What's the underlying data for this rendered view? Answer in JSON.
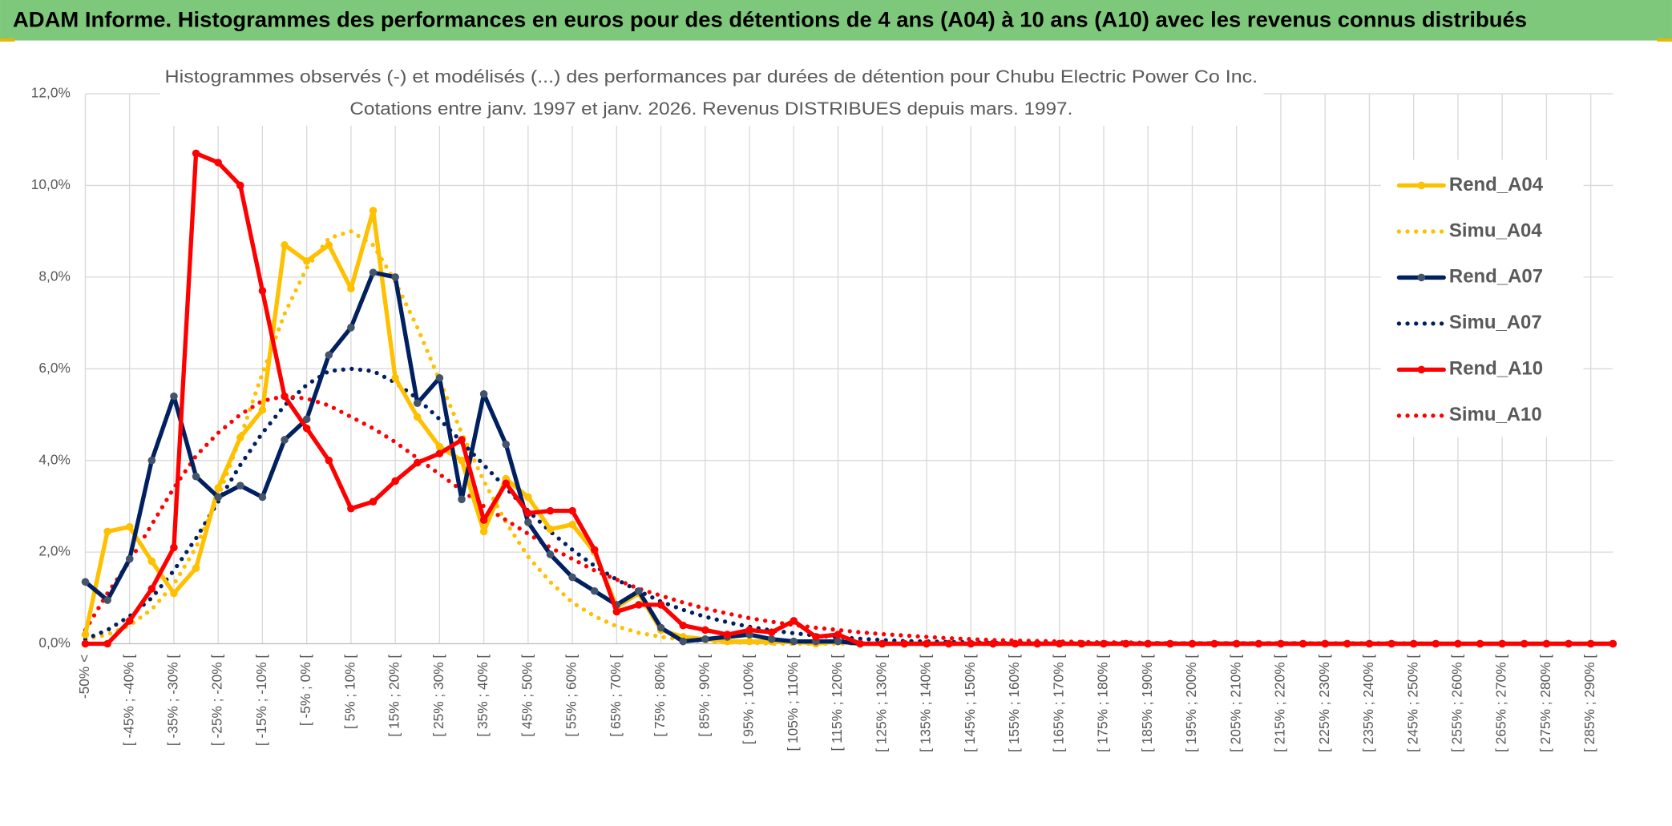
{
  "chart_data": {
    "type": "line",
    "header": "ADAM Informe. Histogrammes des performances en euros pour des détentions de 4 ans (A04) à 10 ans (A10) avec les revenus connus distribués",
    "title": "Histogrammes observés (-) et modélisés (...) des performances par durées de détention pour Chubu Electric Power Co Inc.",
    "subtitle": "Cotations entre janv. 1997 et janv. 2026. Revenus DISTRIBUES depuis mars. 1997.",
    "categories": [
      "-50% <",
      null,
      "[ -45% ; -40% [",
      null,
      "[ -35% ; -30% [",
      null,
      "[ -25% ; -20% [",
      null,
      "[ -15% ; -10% [",
      null,
      "[ -5% ; 0% [",
      null,
      "[ 5% ; 10% [",
      null,
      "[ 15% ; 20% [",
      null,
      "[ 25% ; 30% [",
      null,
      "[ 35% ; 40% [",
      null,
      "[ 45% ; 50% [",
      null,
      "[ 55% ; 60% [",
      null,
      "[ 65% ; 70% [",
      null,
      "[ 75% ; 80% [",
      null,
      "[ 85% ; 90% [",
      null,
      "[ 95% ; 100% [",
      null,
      "[ 105% ; 110% [",
      null,
      "[ 115% ; 120% [",
      null,
      "[ 125% ; 130% [",
      null,
      "[ 135% ; 140% [",
      null,
      "[ 145% ; 150% [",
      null,
      "[ 155% ; 160% [",
      null,
      "[ 165% ; 170% [",
      null,
      "[ 175% ; 180% [",
      null,
      "[ 185% ; 190% [",
      null,
      "[ 195% ; 200% [",
      null,
      "[ 205% ; 210% [",
      null,
      "[ 215% ; 220% [",
      null,
      "[ 225% ; 230% [",
      null,
      "[ 235% ; 240% [",
      null,
      "[ 245% ; 250% [",
      null,
      "[ 255% ; 260% [",
      null,
      "[ 265% ; 270% [",
      null,
      "[ 275% ; 280% [",
      null,
      "[ 285% ; 290% [",
      null
    ],
    "series": [
      {
        "name": "Rend_A04",
        "color": "#ffc000",
        "style": "solid",
        "markers": true,
        "values": [
          0.2,
          2.45,
          2.55,
          1.8,
          1.1,
          1.65,
          3.4,
          4.5,
          5.1,
          8.7,
          8.35,
          8.7,
          7.75,
          9.45,
          5.8,
          4.95,
          4.3,
          4.0,
          2.45,
          3.6,
          3.2,
          2.5,
          2.6,
          2.0,
          0.8,
          1.1,
          0.3,
          0.15,
          0.1,
          0.05,
          0.05,
          0.05,
          0.05,
          0,
          0.05,
          0,
          0,
          0,
          0,
          0,
          0,
          0,
          0,
          0,
          0,
          0,
          0,
          0,
          0,
          0,
          0,
          0,
          0,
          0,
          0,
          0,
          0,
          0,
          0,
          0,
          0,
          0,
          0,
          0,
          0,
          0,
          0,
          0,
          0,
          0
        ]
      },
      {
        "name": "Simu_A04",
        "color": "#ffc000",
        "style": "dotted",
        "markers": false,
        "values": [
          0.1,
          0.2,
          0.4,
          0.75,
          1.3,
          2.1,
          3.2,
          4.5,
          5.9,
          7.2,
          8.2,
          8.85,
          9.0,
          8.7,
          7.9,
          6.9,
          5.75,
          4.6,
          3.55,
          2.65,
          1.9,
          1.35,
          0.9,
          0.6,
          0.38,
          0.24,
          0.15,
          0.09,
          0.05,
          0.03,
          0.02,
          0,
          0,
          0,
          0,
          0,
          0,
          0,
          0,
          0,
          0,
          0,
          0,
          0,
          0,
          0,
          0,
          0,
          0,
          0,
          0,
          0,
          0,
          0,
          0,
          0,
          0,
          0,
          0,
          0,
          0,
          0,
          0,
          0,
          0,
          0,
          0,
          0,
          0,
          0
        ]
      },
      {
        "name": "Rend_A07",
        "color": "#002060",
        "style": "solid",
        "markers": true,
        "marker_color": "#44546a",
        "values": [
          1.35,
          0.95,
          1.85,
          4.0,
          5.4,
          3.65,
          3.2,
          3.45,
          3.2,
          4.45,
          4.9,
          6.3,
          6.9,
          8.1,
          8.0,
          5.25,
          5.8,
          3.15,
          5.45,
          4.35,
          2.65,
          1.95,
          1.45,
          1.15,
          0.85,
          1.15,
          0.35,
          0.05,
          0.1,
          0.15,
          0.2,
          0.1,
          0.05,
          0.05,
          0.05,
          0,
          0,
          0,
          0,
          0,
          0,
          0,
          0,
          0,
          0,
          0,
          0,
          0,
          0,
          0,
          0,
          0,
          0,
          0,
          0,
          0,
          0,
          0,
          0,
          0,
          0,
          0,
          0,
          0,
          0,
          0,
          0,
          0,
          0,
          0
        ]
      },
      {
        "name": "Simu_A07",
        "color": "#002060",
        "style": "dotted",
        "markers": false,
        "values": [
          0.1,
          0.3,
          0.6,
          1.0,
          1.6,
          2.3,
          3.1,
          3.9,
          4.6,
          5.2,
          5.65,
          5.95,
          6.0,
          5.95,
          5.7,
          5.35,
          4.9,
          4.4,
          3.9,
          3.4,
          2.9,
          2.45,
          2.05,
          1.7,
          1.4,
          1.15,
          0.92,
          0.74,
          0.59,
          0.47,
          0.37,
          0.29,
          0.23,
          0.18,
          0.14,
          0.11,
          0.08,
          0.06,
          0.05,
          0.04,
          0.03,
          0.02,
          0.01,
          0.01,
          0.01,
          0.01,
          0.01,
          0.01,
          0.01,
          0.01,
          0.01,
          0.01,
          0.01,
          0.01,
          0.01,
          0.01,
          0,
          0,
          0,
          0,
          0,
          0,
          0,
          0,
          0,
          0,
          0,
          0,
          0,
          0
        ]
      },
      {
        "name": "Rend_A10",
        "color": "#ff0000",
        "style": "solid",
        "markers": true,
        "values": [
          0,
          0,
          0.5,
          1.2,
          2.1,
          10.7,
          10.5,
          10.0,
          7.7,
          5.4,
          4.7,
          4.0,
          2.95,
          3.1,
          3.55,
          3.95,
          4.15,
          4.45,
          2.7,
          3.5,
          2.85,
          2.9,
          2.9,
          2.05,
          0.7,
          0.85,
          0.85,
          0.4,
          0.3,
          0.2,
          0.3,
          0.25,
          0.5,
          0.15,
          0.2,
          0,
          0,
          0,
          0,
          0,
          0,
          0,
          0,
          0,
          0,
          0,
          0,
          0,
          0,
          0,
          0,
          0,
          0,
          0,
          0,
          0,
          0,
          0,
          0,
          0,
          0,
          0,
          0,
          0,
          0,
          0,
          0,
          0,
          0,
          0
        ]
      },
      {
        "name": "Simu_A10",
        "color": "#ff0000",
        "style": "dotted",
        "markers": false,
        "values": [
          0.3,
          1.1,
          1.8,
          2.6,
          3.4,
          4.1,
          4.6,
          5.0,
          5.3,
          5.4,
          5.35,
          5.2,
          4.95,
          4.7,
          4.4,
          4.05,
          3.7,
          3.35,
          3.0,
          2.7,
          2.4,
          2.1,
          1.85,
          1.6,
          1.4,
          1.2,
          1.05,
          0.9,
          0.77,
          0.66,
          0.56,
          0.48,
          0.41,
          0.35,
          0.3,
          0.25,
          0.21,
          0.18,
          0.15,
          0.12,
          0.1,
          0.08,
          0.07,
          0.06,
          0.05,
          0.04,
          0.03,
          0.03,
          0.02,
          0.01,
          0.01,
          0.01,
          0.01,
          0.01,
          0.01,
          0.01,
          0.01,
          0.01,
          0.01,
          0.01,
          0.01,
          0,
          0,
          0,
          0,
          0,
          0,
          0,
          0,
          0
        ]
      }
    ],
    "ylim": [
      0,
      12
    ],
    "yticks": [
      {
        "value": 0,
        "label": "0,0%"
      },
      {
        "value": 2,
        "label": "2,0%"
      },
      {
        "value": 4,
        "label": "4,0%"
      },
      {
        "value": 6,
        "label": "6,0%"
      },
      {
        "value": 8,
        "label": "8,0%"
      },
      {
        "value": 10,
        "label": "10,0%"
      },
      {
        "value": 12,
        "label": "12,0%"
      }
    ],
    "grid": true,
    "legend": "right"
  }
}
